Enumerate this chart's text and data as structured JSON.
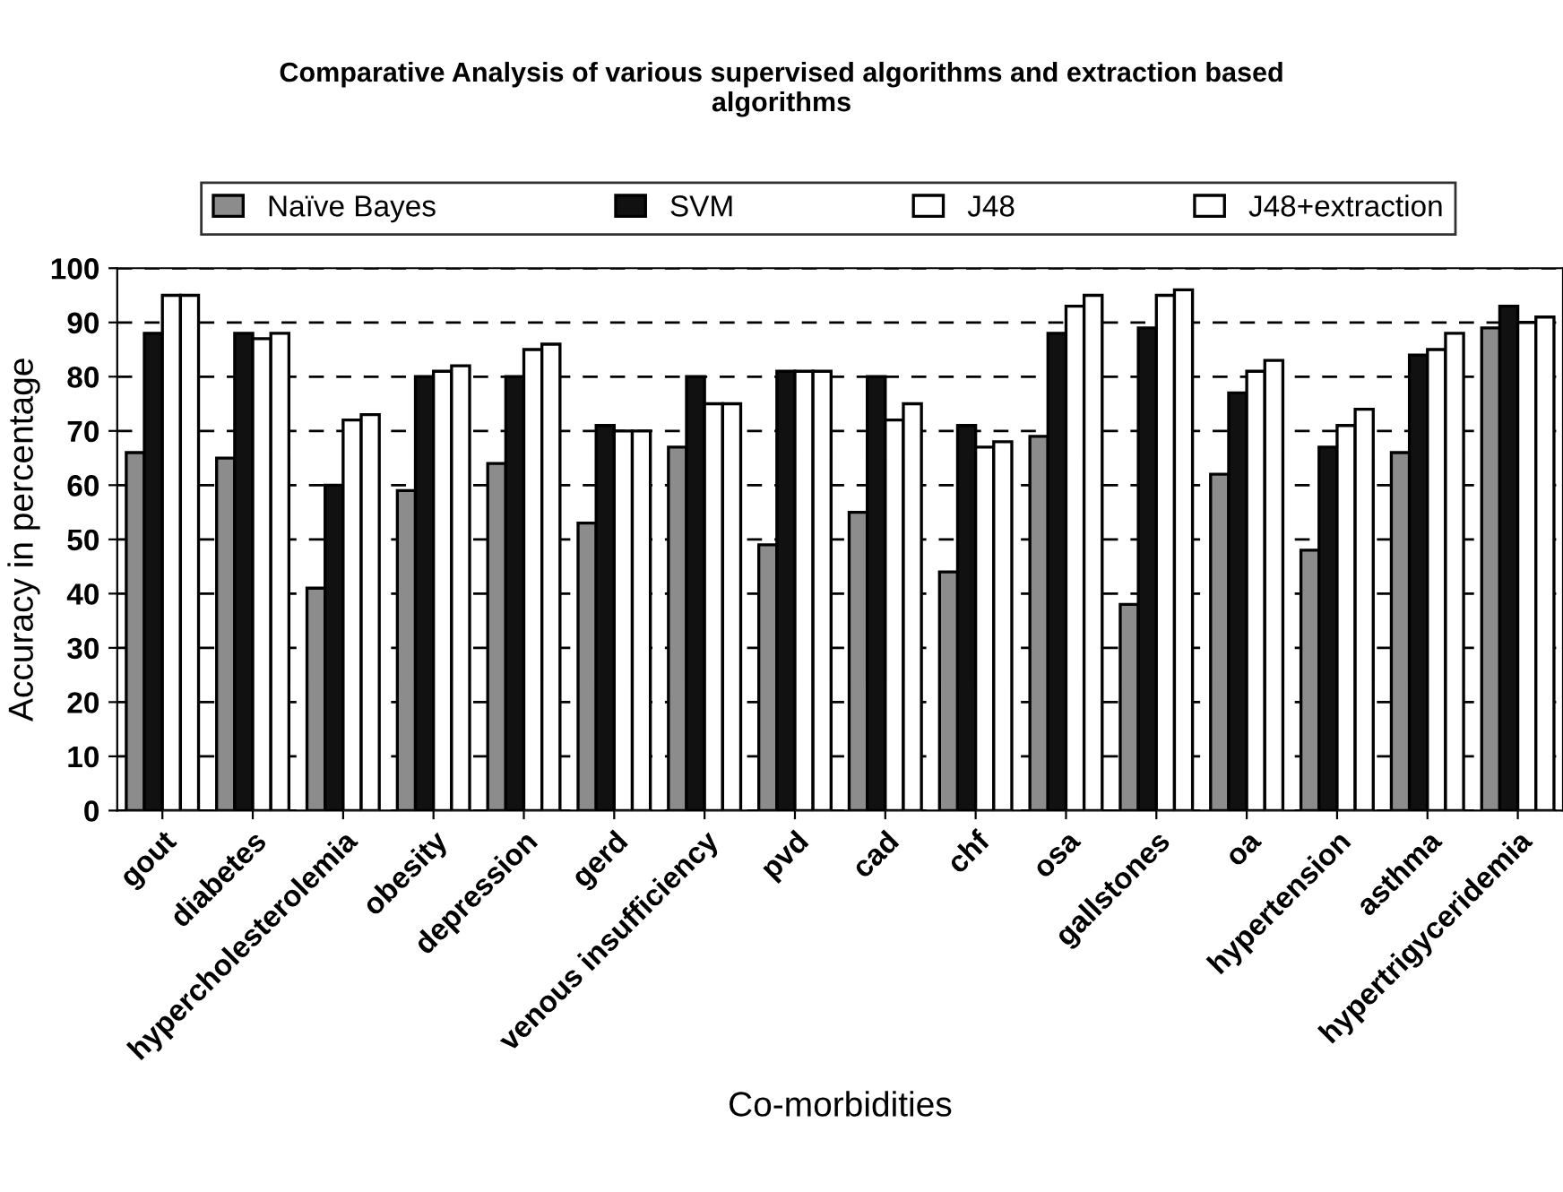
{
  "chart_data": {
    "type": "bar",
    "title": "Comparative Analysis of various supervised algorithms and extraction based\nalgorithms",
    "xlabel": "Co-morbidities",
    "ylabel": "Accuracy in percentage",
    "categories": [
      "gout",
      "diabetes",
      "hypercholesterolemia",
      "obesity",
      "depression",
      "gerd",
      "venous insufficiency",
      "pvd",
      "cad",
      "chf",
      "osa",
      "gallstones",
      "oa",
      "hypertension",
      "asthma",
      "hypertrigyceridemia"
    ],
    "series": [
      {
        "name": "Naïve Bayes",
        "color": "#8c8c8c",
        "values": [
          66,
          65,
          41,
          59,
          64,
          53,
          67,
          49,
          55,
          44,
          69,
          38,
          62,
          48,
          66,
          89
        ]
      },
      {
        "name": "SVM",
        "color": "#111111",
        "values": [
          88,
          88,
          60,
          80,
          80,
          71,
          80,
          81,
          80,
          71,
          88,
          89,
          77,
          67,
          84,
          93
        ]
      },
      {
        "name": "J48",
        "color": "#ffffff",
        "values": [
          95,
          87,
          72,
          81,
          85,
          70,
          75,
          81,
          72,
          67,
          93,
          95,
          81,
          71,
          85,
          90
        ]
      },
      {
        "name": "J48+extraction",
        "color": "#ffffff",
        "values": [
          95,
          88,
          73,
          82,
          86,
          70,
          75,
          81,
          75,
          68,
          95,
          96,
          83,
          74,
          88,
          91
        ]
      }
    ],
    "ylim": [
      0,
      100
    ],
    "yticks": [
      0,
      10,
      20,
      30,
      40,
      50,
      60,
      70,
      80,
      90,
      100
    ],
    "grid": "y",
    "legend": "top"
  }
}
